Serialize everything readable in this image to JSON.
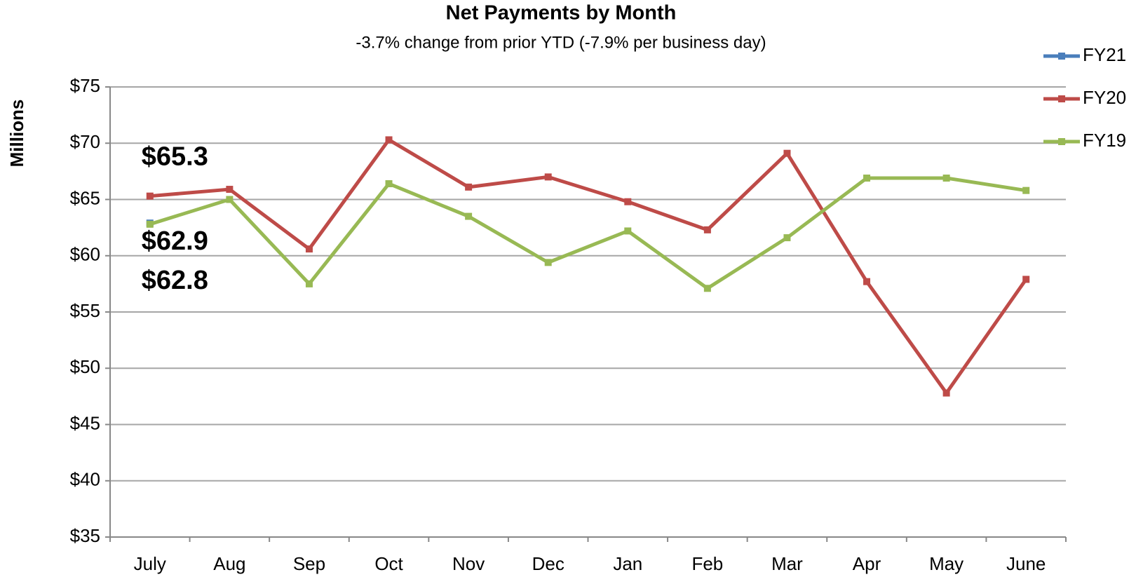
{
  "chart_data": {
    "type": "line",
    "title": "Net Payments by Month",
    "subtitle": "-3.7% change from prior YTD (-7.9% per business day)",
    "y_label": "Millions",
    "categories": [
      "July",
      "Aug",
      "Sep",
      "Oct",
      "Nov",
      "Dec",
      "Jan",
      "Feb",
      "Mar",
      "Apr",
      "May",
      "June"
    ],
    "series": [
      {
        "name": "FY21",
        "color": "#4a7ebb",
        "values": [
          62.9,
          null,
          null,
          null,
          null,
          null,
          null,
          null,
          null,
          null,
          null,
          null
        ],
        "value_labels": [
          "$62.9",
          null,
          null,
          null,
          null,
          null,
          null,
          null,
          null,
          null,
          null,
          null
        ],
        "label_color": "#3e6a9e"
      },
      {
        "name": "FY20",
        "color": "#be4b48",
        "values": [
          65.3,
          65.9,
          60.6,
          70.3,
          66.1,
          67.0,
          64.8,
          62.3,
          69.1,
          57.7,
          47.8,
          57.9
        ],
        "value_labels": [
          "$65.3",
          null,
          null,
          null,
          null,
          null,
          null,
          null,
          null,
          null,
          null,
          null
        ],
        "label_color": "#c00000"
      },
      {
        "name": "FY19",
        "color": "#98b954",
        "values": [
          62.8,
          65.0,
          57.5,
          66.4,
          63.5,
          59.4,
          62.2,
          57.1,
          61.6,
          66.9,
          66.9,
          65.8
        ],
        "value_labels": [
          "$62.8",
          null,
          null,
          null,
          null,
          null,
          null,
          null,
          null,
          null,
          null,
          null
        ],
        "label_color": "#77933c"
      }
    ],
    "ylim": [
      35,
      75
    ],
    "yticks": [
      {
        "value": 35,
        "label": "$35"
      },
      {
        "value": 40,
        "label": "$40"
      },
      {
        "value": 45,
        "label": "$45"
      },
      {
        "value": 50,
        "label": "$50"
      },
      {
        "value": 55,
        "label": "$55"
      },
      {
        "value": 60,
        "label": "$60"
      },
      {
        "value": 65,
        "label": "$65"
      },
      {
        "value": 70,
        "label": "$70"
      },
      {
        "value": 75,
        "label": "$75"
      }
    ],
    "grid": true,
    "legend": "top-right"
  }
}
